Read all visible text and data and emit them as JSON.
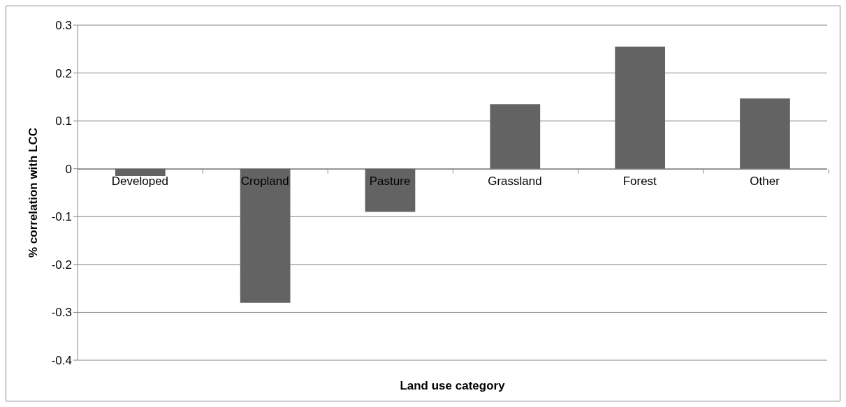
{
  "chart_data": {
    "type": "bar",
    "xlabel": "Land use category",
    "ylabel": "% correlation with LCC",
    "categories": [
      "Developed",
      "Cropland",
      "Pasture",
      "Grassland",
      "Forest",
      "Other"
    ],
    "values": [
      -0.015,
      -0.28,
      -0.09,
      0.135,
      0.255,
      0.147
    ],
    "color": "#636363",
    "ylim": [
      -0.4,
      0.3
    ],
    "yticks": [
      -0.4,
      -0.3,
      -0.2,
      -0.1,
      0,
      0.1,
      0.2,
      0.3
    ],
    "grid": "y"
  }
}
